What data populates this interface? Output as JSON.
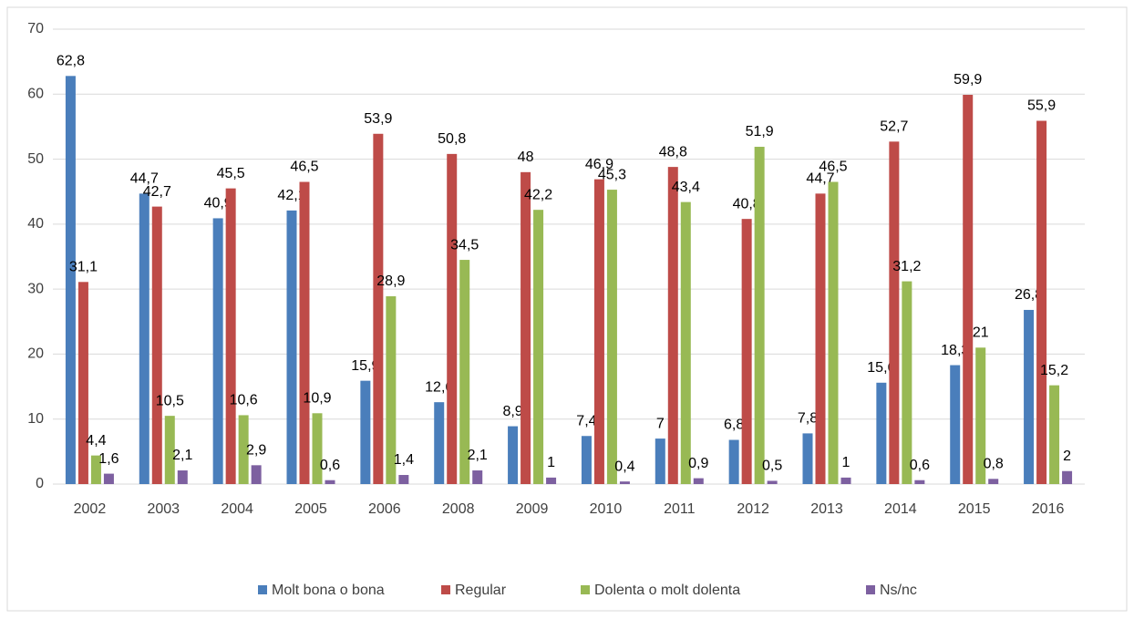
{
  "chart_data": {
    "type": "bar",
    "categories": [
      "2002",
      "2003",
      "2004",
      "2005",
      "2006",
      "2008",
      "2009",
      "2010",
      "2011",
      "2012",
      "2013",
      "2014",
      "2015",
      "2016"
    ],
    "series": [
      {
        "name": "Molt bona o bona",
        "color": "#4a7ebb",
        "values": [
          62.8,
          44.7,
          40.9,
          42.1,
          15.9,
          12.6,
          8.9,
          7.4,
          7,
          6.8,
          7.8,
          15.6,
          18.3,
          26.8
        ],
        "value_labels": [
          "62,8",
          "44,7",
          "40,9",
          "42,1",
          "15,9",
          "12,6",
          "8,9",
          "7,4",
          "7",
          "6,8",
          "7,8",
          "15,6",
          "18,3",
          "26,8"
        ]
      },
      {
        "name": "Regular",
        "color": "#be4b48",
        "values": [
          31.1,
          42.7,
          45.5,
          46.5,
          53.9,
          50.8,
          48,
          46.9,
          48.8,
          40.8,
          44.7,
          52.7,
          59.9,
          55.9
        ],
        "value_labels": [
          "31,1",
          "42,7",
          "45,5",
          "46,5",
          "53,9",
          "50,8",
          "48",
          "46,9",
          "48,8",
          "40,8",
          "44,7",
          "52,7",
          "59,9",
          "55,9"
        ]
      },
      {
        "name": "Dolenta o molt dolenta",
        "color": "#98b954",
        "values": [
          4.4,
          10.5,
          10.6,
          10.9,
          28.9,
          34.5,
          42.2,
          45.3,
          43.4,
          51.9,
          46.5,
          31.2,
          21,
          15.2
        ],
        "value_labels": [
          "4,4",
          "10,5",
          "10,6",
          "10,9",
          "28,9",
          "34,5",
          "42,2",
          "45,3",
          "43,4",
          "51,9",
          "46,5",
          "31,2",
          "21",
          "15,2"
        ]
      },
      {
        "name": "Ns/nc",
        "color": "#7d60a0",
        "values": [
          1.6,
          2.1,
          2.9,
          0.6,
          1.4,
          2.1,
          1,
          0.4,
          0.9,
          0.5,
          1,
          0.6,
          0.8,
          2
        ],
        "value_labels": [
          "1,6",
          "2,1",
          "2,9",
          "0,6",
          "1,4",
          "2,1",
          "1",
          "0,4",
          "0,9",
          "0,5",
          "1",
          "0,6",
          "0,8",
          "2"
        ]
      }
    ],
    "ylim": [
      0,
      70
    ],
    "yticks": [
      0,
      10,
      20,
      30,
      40,
      50,
      60,
      70
    ],
    "grid": true,
    "legend": "bottom"
  }
}
